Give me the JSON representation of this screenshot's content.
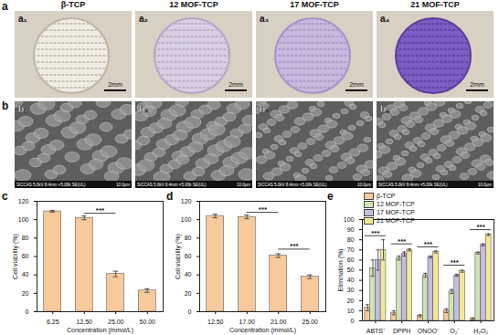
{
  "panels": {
    "a": {
      "label": "a",
      "tiles": [
        {
          "title": "β-TCP",
          "label": "a₁",
          "scale_bar": "2mm"
        },
        {
          "title": "12 MOF-TCP",
          "label": "a₂",
          "scale_bar": "2mm"
        },
        {
          "title": "17 MOF-TCP",
          "label": "a₃",
          "scale_bar": "2mm"
        },
        {
          "title": "21 MOF-TCP",
          "label": "a₄",
          "scale_bar": "2mm"
        }
      ]
    },
    "b": {
      "label": "b",
      "tiles": [
        {
          "label": "b₁",
          "info": "SICCAS 5.0kV 8.4mm ×5.00k SE(UL)",
          "scale_bar": "10.0μm"
        },
        {
          "label": "b₂",
          "info": "SICCAS 5.0kV 8.4mm ×5.00k SE(UL)",
          "scale_bar": "10.0μm"
        },
        {
          "label": "b₃",
          "info": "SICCAS 5.0kV 8.4mm ×5.00k SE(UL)",
          "scale_bar": "10.0μm"
        },
        {
          "label": "b₄",
          "info": "SICCAS 5.0kV 8.4mm ×5.00k SE(UL)",
          "scale_bar": "10.0μm"
        }
      ]
    }
  },
  "chart_data": [
    {
      "panel": "c",
      "type": "bar",
      "x_label": "Concentration (mmol/L)",
      "y_label": "Cell viability (%)",
      "categories": [
        "6.25",
        "12.50",
        "25.00",
        "50.00"
      ],
      "values": [
        109,
        102,
        41,
        23
      ],
      "errors": [
        1,
        2,
        3,
        2
      ],
      "color": "#f8c99b",
      "ylim": [
        0,
        120
      ],
      "yticks": [
        0,
        20,
        40,
        60,
        80,
        100,
        120
      ],
      "annotations": [
        {
          "text": "***",
          "from": "12.50",
          "to": "25.00",
          "y": 107
        }
      ]
    },
    {
      "panel": "d",
      "type": "bar",
      "x_label": "Concentration (mmol/L)",
      "y_label": "Cell viability (%)",
      "categories": [
        "12.50",
        "17.00",
        "21.00",
        "25.00"
      ],
      "values": [
        104,
        103,
        61,
        38
      ],
      "errors": [
        2,
        2,
        2,
        2
      ],
      "color": "#f8c99b",
      "ylim": [
        0,
        120
      ],
      "yticks": [
        0,
        20,
        40,
        60,
        80,
        100,
        120
      ],
      "annotations": [
        {
          "text": "***",
          "from": "17.00",
          "to": "21.00",
          "y": 108
        },
        {
          "text": "***",
          "from": "21.00",
          "to": "25.00",
          "y": 68
        }
      ]
    },
    {
      "panel": "e",
      "type": "bar",
      "y_label": "Elimination (%)",
      "categories": [
        "ABTS⁺",
        "DPPH",
        "ONOO⁻",
        "O₂⁻",
        "H₂O₂"
      ],
      "series": [
        {
          "name": "β-TCP",
          "color": "#f8c99b",
          "values": [
            13,
            8,
            5,
            10,
            2
          ],
          "errors": [
            3,
            2,
            1,
            2,
            1
          ]
        },
        {
          "name": "12 MOF-TCP",
          "color": "#cfe3b5",
          "values": [
            52,
            62,
            45,
            29,
            67
          ],
          "errors": [
            8,
            2,
            2,
            2,
            1
          ]
        },
        {
          "name": "17 MOF-TCP",
          "color": "#c5bde0",
          "values": [
            60,
            66,
            63,
            45,
            75
          ],
          "errors": [
            10,
            2,
            1,
            1,
            1
          ]
        },
        {
          "name": "21 MOF-TCP",
          "color": "#f3e79a",
          "values": [
            70,
            70,
            68,
            49,
            85
          ],
          "errors": [
            10,
            1,
            1,
            1,
            1
          ]
        }
      ],
      "ylim": [
        0,
        100
      ],
      "yticks": [
        0,
        10,
        20,
        30,
        40,
        50,
        60,
        70,
        80,
        90,
        100
      ],
      "legend": "top",
      "annotations": [
        {
          "text": "***",
          "category": "ABTS⁺",
          "y": 84
        },
        {
          "text": "***",
          "category": "DPPH",
          "y": 76
        },
        {
          "text": "***",
          "category": "ONOO⁻",
          "y": 73
        },
        {
          "text": "***",
          "category": "O₂⁻",
          "y": 55
        },
        {
          "text": "***",
          "category": "H₂O₂",
          "y": 90
        }
      ]
    }
  ]
}
